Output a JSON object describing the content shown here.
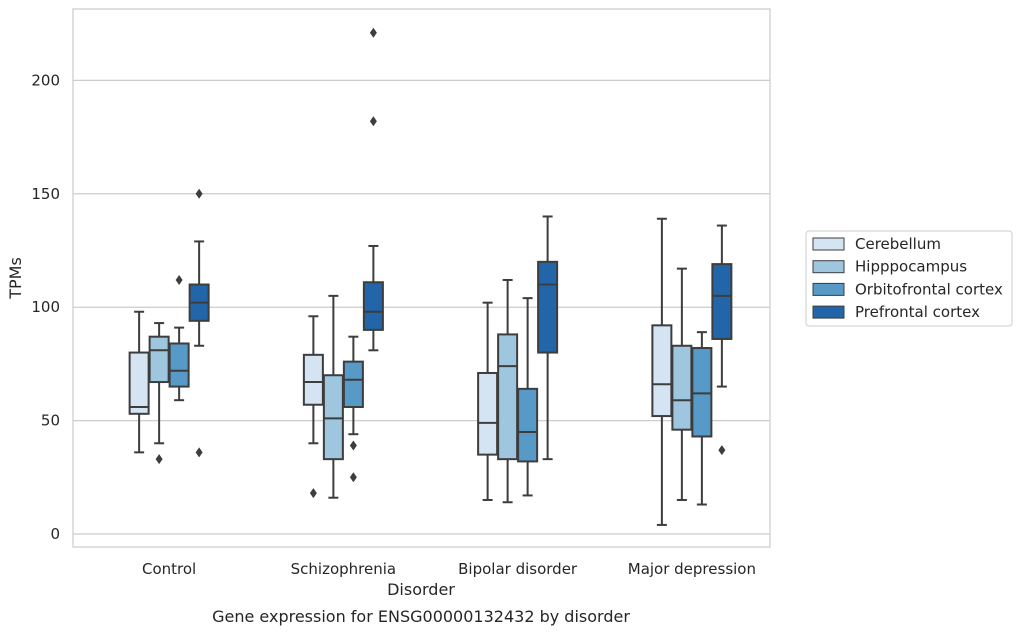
{
  "chart_data": {
    "type": "box",
    "caption": "Gene expression for ENSG00000132432 by disorder",
    "xlabel": "Disorder",
    "ylabel": "TPMs",
    "ylim": [
      -6,
      232
    ],
    "yticks": [
      0,
      50,
      100,
      150,
      200
    ],
    "grid": "horizontal",
    "legend_position": "right",
    "categories": [
      "Control",
      "Schizophrenia",
      "Bipolar disorder",
      "Major depression"
    ],
    "series": [
      {
        "name": "Cerebellum",
        "color": "#d5e4f3",
        "boxes": [
          {
            "whislo": 36,
            "q1": 53,
            "med": 56,
            "q3": 80,
            "whishi": 98,
            "fliers": []
          },
          {
            "whislo": 40,
            "q1": 57,
            "med": 67,
            "q3": 79,
            "whishi": 96,
            "fliers": [
              18
            ]
          },
          {
            "whislo": 15,
            "q1": 35,
            "med": 49,
            "q3": 71,
            "whishi": 102,
            "fliers": []
          },
          {
            "whislo": 4,
            "q1": 52,
            "med": 66,
            "q3": 92,
            "whishi": 139,
            "fliers": []
          }
        ]
      },
      {
        "name": "Hipppocampus",
        "color": "#9ec6de",
        "boxes": [
          {
            "whislo": 40,
            "q1": 67,
            "med": 81,
            "q3": 87,
            "whishi": 93,
            "fliers": [
              33
            ]
          },
          {
            "whislo": 16,
            "q1": 33,
            "med": 51,
            "q3": 70,
            "whishi": 105,
            "fliers": []
          },
          {
            "whislo": 14,
            "q1": 33,
            "med": 74,
            "q3": 88,
            "whishi": 112,
            "fliers": []
          },
          {
            "whislo": 15,
            "q1": 46,
            "med": 59,
            "q3": 83,
            "whishi": 117,
            "fliers": []
          }
        ]
      },
      {
        "name": "Orbitofrontal cortex",
        "color": "#5799c7",
        "boxes": [
          {
            "whislo": 59,
            "q1": 65,
            "med": 72,
            "q3": 84,
            "whishi": 91,
            "fliers": [
              112
            ]
          },
          {
            "whislo": 44,
            "q1": 56,
            "med": 68,
            "q3": 76,
            "whishi": 87,
            "fliers": [
              25,
              39
            ]
          },
          {
            "whislo": 17,
            "q1": 32,
            "med": 45,
            "q3": 64,
            "whishi": 104,
            "fliers": []
          },
          {
            "whislo": 13,
            "q1": 43,
            "med": 62,
            "q3": 82,
            "whishi": 89,
            "fliers": []
          }
        ]
      },
      {
        "name": "Prefrontal cortex",
        "color": "#2265a8",
        "boxes": [
          {
            "whislo": 83,
            "q1": 94,
            "med": 102,
            "q3": 110,
            "whishi": 129,
            "fliers": [
              36,
              150
            ]
          },
          {
            "whislo": 81,
            "q1": 90,
            "med": 98,
            "q3": 111,
            "whishi": 127,
            "fliers": [
              182,
              221
            ]
          },
          {
            "whislo": 33,
            "q1": 80,
            "med": 110,
            "q3": 120,
            "whishi": 140,
            "fliers": []
          },
          {
            "whislo": 65,
            "q1": 86,
            "med": 105,
            "q3": 119,
            "whishi": 136,
            "fliers": [
              37
            ]
          }
        ]
      }
    ]
  }
}
